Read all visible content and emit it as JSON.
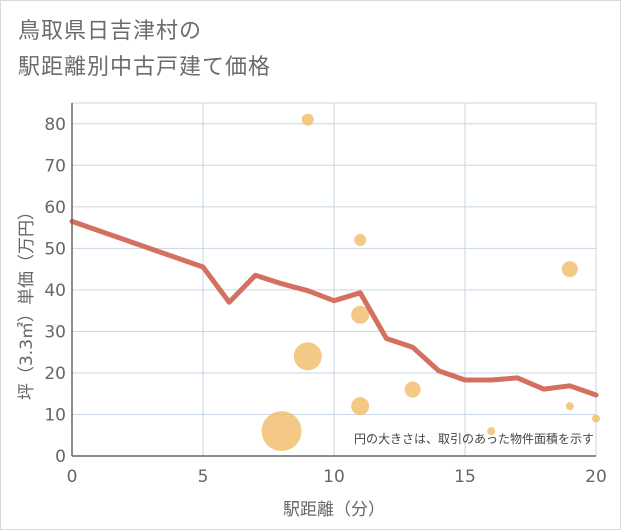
{
  "page": {
    "title_line1": "鳥取県日吉津村の",
    "title_line2": "駅距離別中古戸建て価格"
  },
  "chart_data": {
    "type": "scatter",
    "title": "鳥取県日吉津村の駅距離別中古戸建て価格",
    "xlabel": "駅距離（分）",
    "ylabel": "坪（3.3㎡）単価（万円）",
    "xlim": [
      0,
      20
    ],
    "ylim": [
      0,
      85
    ],
    "xticks": [
      0,
      5,
      10,
      15,
      20
    ],
    "yticks": [
      0,
      10,
      20,
      30,
      40,
      50,
      60,
      70,
      80
    ],
    "grid": true,
    "note": "円の大きさは、取引のあった物件面積を示す",
    "colors": {
      "bubble": "#f0bc67",
      "line": "#d4705f",
      "grid": "#c9d6e6",
      "axis": "#666666"
    },
    "bubbles": [
      {
        "x": 8,
        "y": 6,
        "size": 20
      },
      {
        "x": 9,
        "y": 81,
        "size": 6
      },
      {
        "x": 9,
        "y": 24,
        "size": 14
      },
      {
        "x": 11,
        "y": 52,
        "size": 6
      },
      {
        "x": 11,
        "y": 34,
        "size": 9
      },
      {
        "x": 11,
        "y": 12,
        "size": 9
      },
      {
        "x": 13,
        "y": 16,
        "size": 8
      },
      {
        "x": 16,
        "y": 6,
        "size": 4
      },
      {
        "x": 19,
        "y": 45,
        "size": 8
      },
      {
        "x": 19,
        "y": 12,
        "size": 4
      },
      {
        "x": 20,
        "y": 9,
        "size": 4
      }
    ],
    "series": [
      {
        "name": "trend",
        "type": "line",
        "x": [
          0,
          5,
          6,
          7,
          8,
          9,
          10,
          11,
          12,
          13,
          14,
          15,
          16,
          17,
          18,
          19,
          20
        ],
        "y": [
          56.5,
          45.5,
          37,
          43.5,
          41.5,
          39.8,
          37.4,
          39.3,
          28.3,
          26.2,
          20.5,
          18.3,
          18.3,
          18.8,
          16.1,
          16.9,
          14.7
        ]
      }
    ]
  }
}
